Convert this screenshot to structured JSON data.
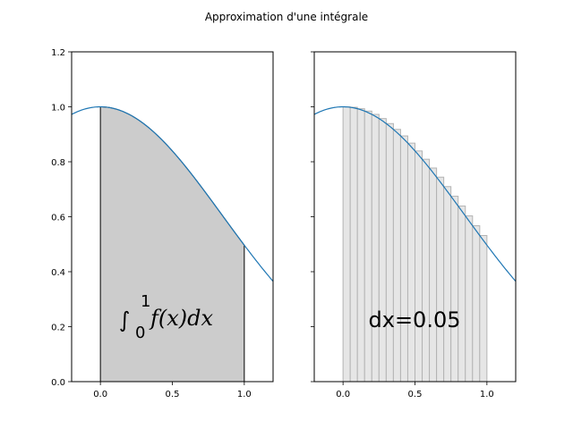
{
  "figure_title": "Approximation d'une intégrale",
  "chart_data": [
    {
      "type": "area",
      "function": "0.5 + cos(x)/2 · (… hump shape)",
      "x_range_curve": [
        -0.2,
        1.2
      ],
      "fill_range": [
        0,
        1
      ],
      "xlim": [
        -0.2,
        1.2
      ],
      "ylim": [
        0.0,
        1.2
      ],
      "xticks": [
        "0.0",
        "0.5",
        "1.0"
      ],
      "yticks": [
        "0.0",
        "0.2",
        "0.4",
        "0.6",
        "0.8",
        "1.0",
        "1.2"
      ],
      "annotation": {
        "prefix": "∫",
        "lower": "0",
        "upper": "1",
        "body": "f(x)dx"
      },
      "colors": {
        "line": "#1f77b4",
        "fill": "#cccccc",
        "edge": "#000000"
      }
    },
    {
      "type": "bar",
      "function": "same curve",
      "x_range_curve": [
        -0.2,
        1.2
      ],
      "bar_start": 0.0,
      "bar_end": 1.0,
      "dx": 0.05,
      "xlim": [
        -0.2,
        1.2
      ],
      "ylim": [
        0.0,
        1.2
      ],
      "xticks": [
        "0.0",
        "0.5",
        "1.0"
      ],
      "annotation": "dx=0.05",
      "colors": {
        "line": "#1f77b4",
        "bar": "#e6e6e6",
        "bar_edge": "#b3b3b3"
      }
    }
  ]
}
